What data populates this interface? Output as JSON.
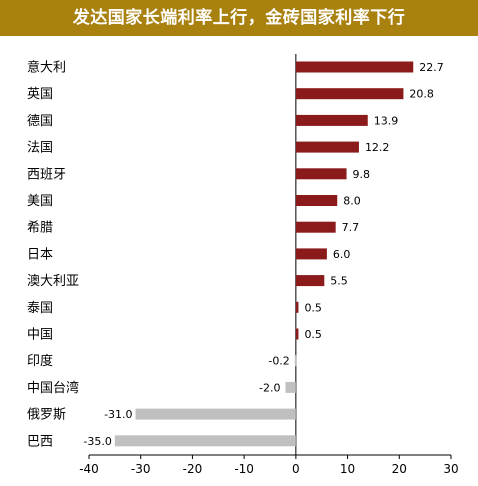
{
  "chart_data": {
    "type": "bar",
    "orientation": "horizontal",
    "title": "发达国家长端利率上行，金砖国家利率下行",
    "categories": [
      "意大利",
      "英国",
      "德国",
      "法国",
      "西班牙",
      "美国",
      "希腊",
      "日本",
      "澳大利亚",
      "泰国",
      "中国",
      "印度",
      "中国台湾",
      "俄罗斯",
      "巴西"
    ],
    "values": [
      22.7,
      20.8,
      13.9,
      12.2,
      9.8,
      8.0,
      7.7,
      6.0,
      5.5,
      0.5,
      0.5,
      -0.2,
      -2.0,
      -31.0,
      -35.0
    ],
    "value_labels": [
      "22.7",
      "20.8",
      "13.9",
      "12.2",
      "9.8",
      "8.0",
      "7.7",
      "6.0",
      "5.5",
      "0.5",
      "0.5",
      "-0.2",
      "-2.0",
      "-31.0",
      "-35.0"
    ],
    "xlim": [
      -40,
      30
    ],
    "xticks": [
      "-40",
      "-30",
      "-20",
      "-10",
      "0",
      "10",
      "20",
      "30"
    ],
    "xlabel": "",
    "ylabel": "",
    "grid": false,
    "legend": "none",
    "colors": {
      "positive": "#8b1a1a",
      "negative": "#c0c0c0",
      "title_bg": "#a8810f",
      "axis": "#000000"
    }
  }
}
